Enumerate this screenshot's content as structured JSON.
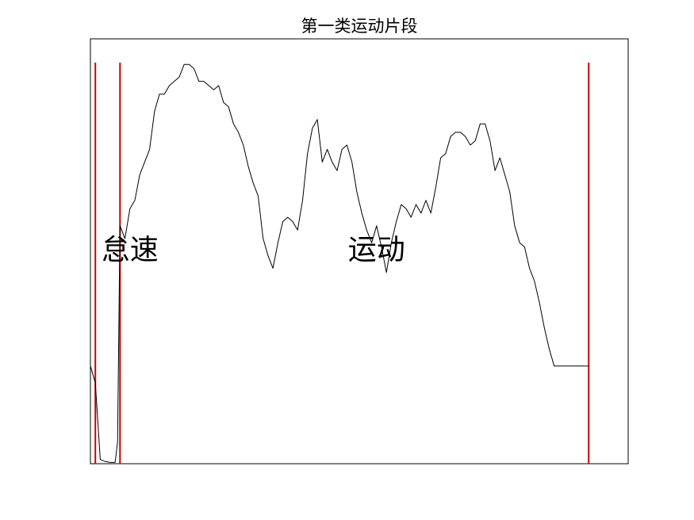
{
  "chart_data": {
    "type": "line",
    "title": "第一类运动片段",
    "xlabel": "",
    "ylabel": "",
    "show_axes_ticks": false,
    "grid": false,
    "colors": {
      "series": "#000000",
      "markers": "#cc0000",
      "frame": "#000000"
    },
    "xlim": [
      0,
      109
    ],
    "ylim": [
      0,
      100
    ],
    "series": [
      {
        "x": [
          0,
          1,
          2,
          3,
          4,
          5,
          5.5,
          6,
          7,
          8,
          9,
          10,
          11,
          12,
          13,
          14,
          15,
          16,
          17,
          18,
          19,
          20,
          21,
          22,
          23,
          24,
          25,
          26,
          27,
          28,
          29,
          30,
          31,
          32,
          33,
          34,
          35,
          36,
          37,
          38,
          39,
          40,
          41,
          42,
          43,
          44,
          45,
          46,
          47,
          48,
          49,
          50,
          51,
          52,
          53,
          54,
          55,
          56,
          57,
          58,
          59,
          60,
          61,
          62,
          63,
          64,
          65,
          66,
          67,
          68,
          69,
          70,
          71,
          72,
          73,
          74,
          75,
          76,
          77,
          78,
          79,
          80,
          81,
          82,
          83,
          84,
          85,
          86,
          87,
          88,
          89,
          90,
          91,
          92,
          93,
          94,
          95,
          96,
          97,
          98,
          99,
          100,
          101
        ],
        "y": [
          23,
          19,
          1,
          0.5,
          0.3,
          0.3,
          5,
          56,
          53,
          60,
          62,
          68,
          71,
          74,
          83,
          87,
          87,
          89,
          90,
          91,
          94,
          94,
          93,
          90,
          90,
          89,
          88,
          89,
          85,
          84,
          80,
          78,
          75,
          70,
          66,
          63,
          53,
          49,
          46,
          52,
          57,
          58,
          57,
          55,
          62,
          73,
          79,
          81,
          71,
          74,
          71,
          69,
          74,
          75,
          71,
          64,
          59,
          55,
          52,
          56,
          51,
          45,
          52,
          57,
          61,
          60,
          58,
          61,
          59,
          62,
          59,
          65,
          72,
          73,
          77,
          78,
          78,
          77,
          75,
          76,
          80,
          80,
          76,
          69,
          72,
          68,
          64,
          56,
          52,
          51,
          46,
          43,
          38,
          32,
          27,
          23,
          23,
          23,
          23,
          23,
          23,
          23,
          23
        ]
      }
    ],
    "vertical_markers": [
      1,
      6,
      101
    ],
    "annotations": [
      {
        "text": "怠速",
        "x": 8,
        "y": 50
      },
      {
        "text": "运动",
        "x": 58,
        "y": 50
      }
    ]
  }
}
